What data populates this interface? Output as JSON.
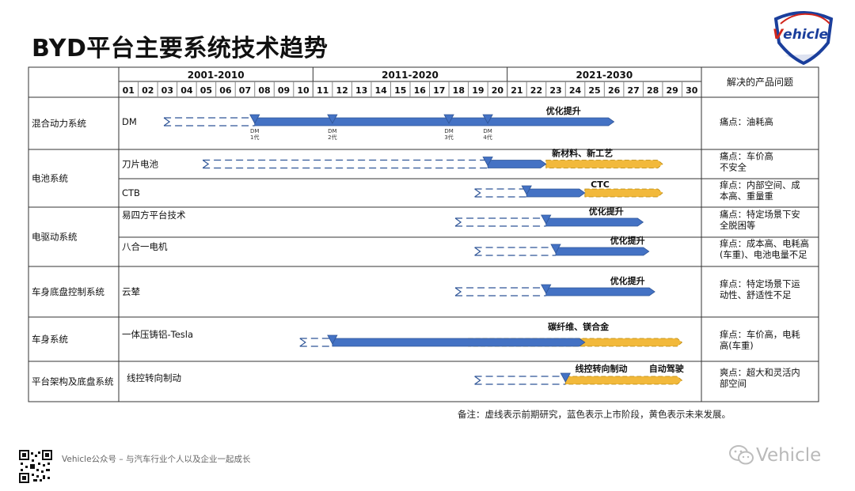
{
  "title": "BYD平台主要系统技术趋势",
  "logo": {
    "brand_prefix": "V",
    "brand_rest": "ehicle"
  },
  "header": {
    "periods": [
      "2001-2010",
      "2011-2020",
      "2021-2030"
    ],
    "years": [
      "01",
      "02",
      "03",
      "04",
      "05",
      "06",
      "07",
      "08",
      "09",
      "10",
      "11",
      "12",
      "13",
      "14",
      "15",
      "16",
      "17",
      "18",
      "19",
      "20",
      "21",
      "22",
      "23",
      "24",
      "25",
      "26",
      "27",
      "28",
      "29",
      "30"
    ],
    "problem_col": "解决的产品问题"
  },
  "groups": [
    {
      "name": "混合动力系统"
    },
    {
      "name": "电池系统"
    },
    {
      "name": "电驱动系统"
    },
    {
      "name": "车身底盘控制系统"
    },
    {
      "name": "车身系统"
    },
    {
      "name": "平台架构及底盘系统"
    }
  ],
  "rows": [
    {
      "group": 0,
      "tech": "DM",
      "problem": [
        "痛点：油耗高"
      ],
      "dashed": [
        3,
        8
      ],
      "blue": [
        [
          8,
          26.5
        ]
      ],
      "yellow": [],
      "milestones": [
        {
          "x": 8,
          "label": [
            "DM",
            "1代"
          ]
        },
        {
          "x": 12,
          "label": [
            "DM",
            "2代"
          ]
        },
        {
          "x": 18,
          "label": [
            "DM",
            "3代"
          ]
        },
        {
          "x": 20,
          "label": [
            "DM",
            "4代"
          ]
        }
      ],
      "labels": [
        {
          "text": "优化提升",
          "x": 23,
          "dy": -14
        }
      ]
    },
    {
      "group": 1,
      "tech": "刀片电池",
      "problem": [
        "痛点：车价高",
        "不安全"
      ],
      "dashed": [
        5,
        20
      ],
      "blue": [
        [
          20,
          23
        ]
      ],
      "yellow": [
        [
          23,
          29
        ]
      ],
      "milestones": [
        {
          "x": 20,
          "label": []
        }
      ],
      "labels": [
        {
          "text": "新材料、新工艺",
          "x": 23.3,
          "dy": -14
        }
      ]
    },
    {
      "group": 1,
      "tech": "CTB",
      "problem": [
        "痒点：内部空间、成",
        "本高、重量重"
      ],
      "dashed": [
        19,
        22
      ],
      "blue": [
        [
          22,
          25
        ]
      ],
      "yellow": [
        [
          25,
          29
        ]
      ],
      "milestones": [
        {
          "x": 22,
          "label": []
        }
      ],
      "labels": [
        {
          "text": "CTC",
          "x": 25.3,
          "dy": -11
        }
      ]
    },
    {
      "group": 2,
      "tech": "易四方平台技术",
      "problem": [
        "痛点：特定场景下安",
        "全脱困等"
      ],
      "dashed": [
        18,
        23
      ],
      "blue": [
        [
          23,
          28
        ]
      ],
      "yellow": [],
      "milestones": [
        {
          "x": 23,
          "label": []
        }
      ],
      "labels": [
        {
          "text": "优化提升",
          "x": 25.2,
          "dy": -14
        }
      ]
    },
    {
      "group": 2,
      "tech": "八合一电机",
      "problem": [
        "痒点：成本高、电耗高",
        "(车重)、电池电量不足"
      ],
      "dashed": [
        19,
        23.5
      ],
      "blue": [
        [
          23.5,
          28.3
        ]
      ],
      "yellow": [],
      "milestones": [
        {
          "x": 23.5,
          "label": []
        }
      ],
      "labels": [
        {
          "text": "优化提升",
          "x": 26.3,
          "dy": -14
        }
      ]
    },
    {
      "group": 3,
      "tech": "云辇",
      "problem": [
        "痒点：特定场景下运",
        "动性、舒适性不足"
      ],
      "dashed": [
        18,
        23
      ],
      "blue": [
        [
          23,
          28.6
        ]
      ],
      "yellow": [],
      "milestones": [
        {
          "x": 23,
          "label": []
        }
      ],
      "labels": [
        {
          "text": "优化提升",
          "x": 26.3,
          "dy": -14
        }
      ]
    },
    {
      "group": 4,
      "tech": "一体压铸铝-Tesla",
      "problem": [
        "痒点：车价高，电耗",
        "高(车重)"
      ],
      "dashed": [
        10,
        12
      ],
      "blue": [
        [
          12,
          25
        ]
      ],
      "yellow": [
        [
          19,
          30
        ]
      ],
      "milestones": [
        {
          "x": 12,
          "label": []
        }
      ],
      "labels": [
        {
          "text": "碳纤维、镁合金",
          "x": 23.1,
          "dy": -20
        }
      ]
    },
    {
      "group": 5,
      "tech": "线控转向制动",
      "problem": [
        "爽点：超大和灵活内",
        "部空间"
      ],
      "dashed": [
        19,
        24
      ],
      "blue": [],
      "yellow": [
        [
          24,
          30
        ]
      ],
      "milestones": [
        {
          "x": 24,
          "label": []
        }
      ],
      "labels": [
        {
          "text": "线控转向制动",
          "x": 24.5,
          "dy": -15
        },
        {
          "text": "自动驾驶",
          "x": 28.3,
          "dy": -15
        }
      ]
    }
  ],
  "note": "备注：虚线表示前期研究，蓝色表示上市阶段，黄色表示未来发展。",
  "footer": "Vehicle公众号 – 与汽车行业个人以及企业一起成长",
  "watermark": "Vehicle",
  "colors": {
    "blue": "#4472c4",
    "blue_dark": "#2f5597",
    "yellow": "#f2b93b",
    "dash": "#2f5597",
    "border": "#333333",
    "grid": "#888888"
  }
}
